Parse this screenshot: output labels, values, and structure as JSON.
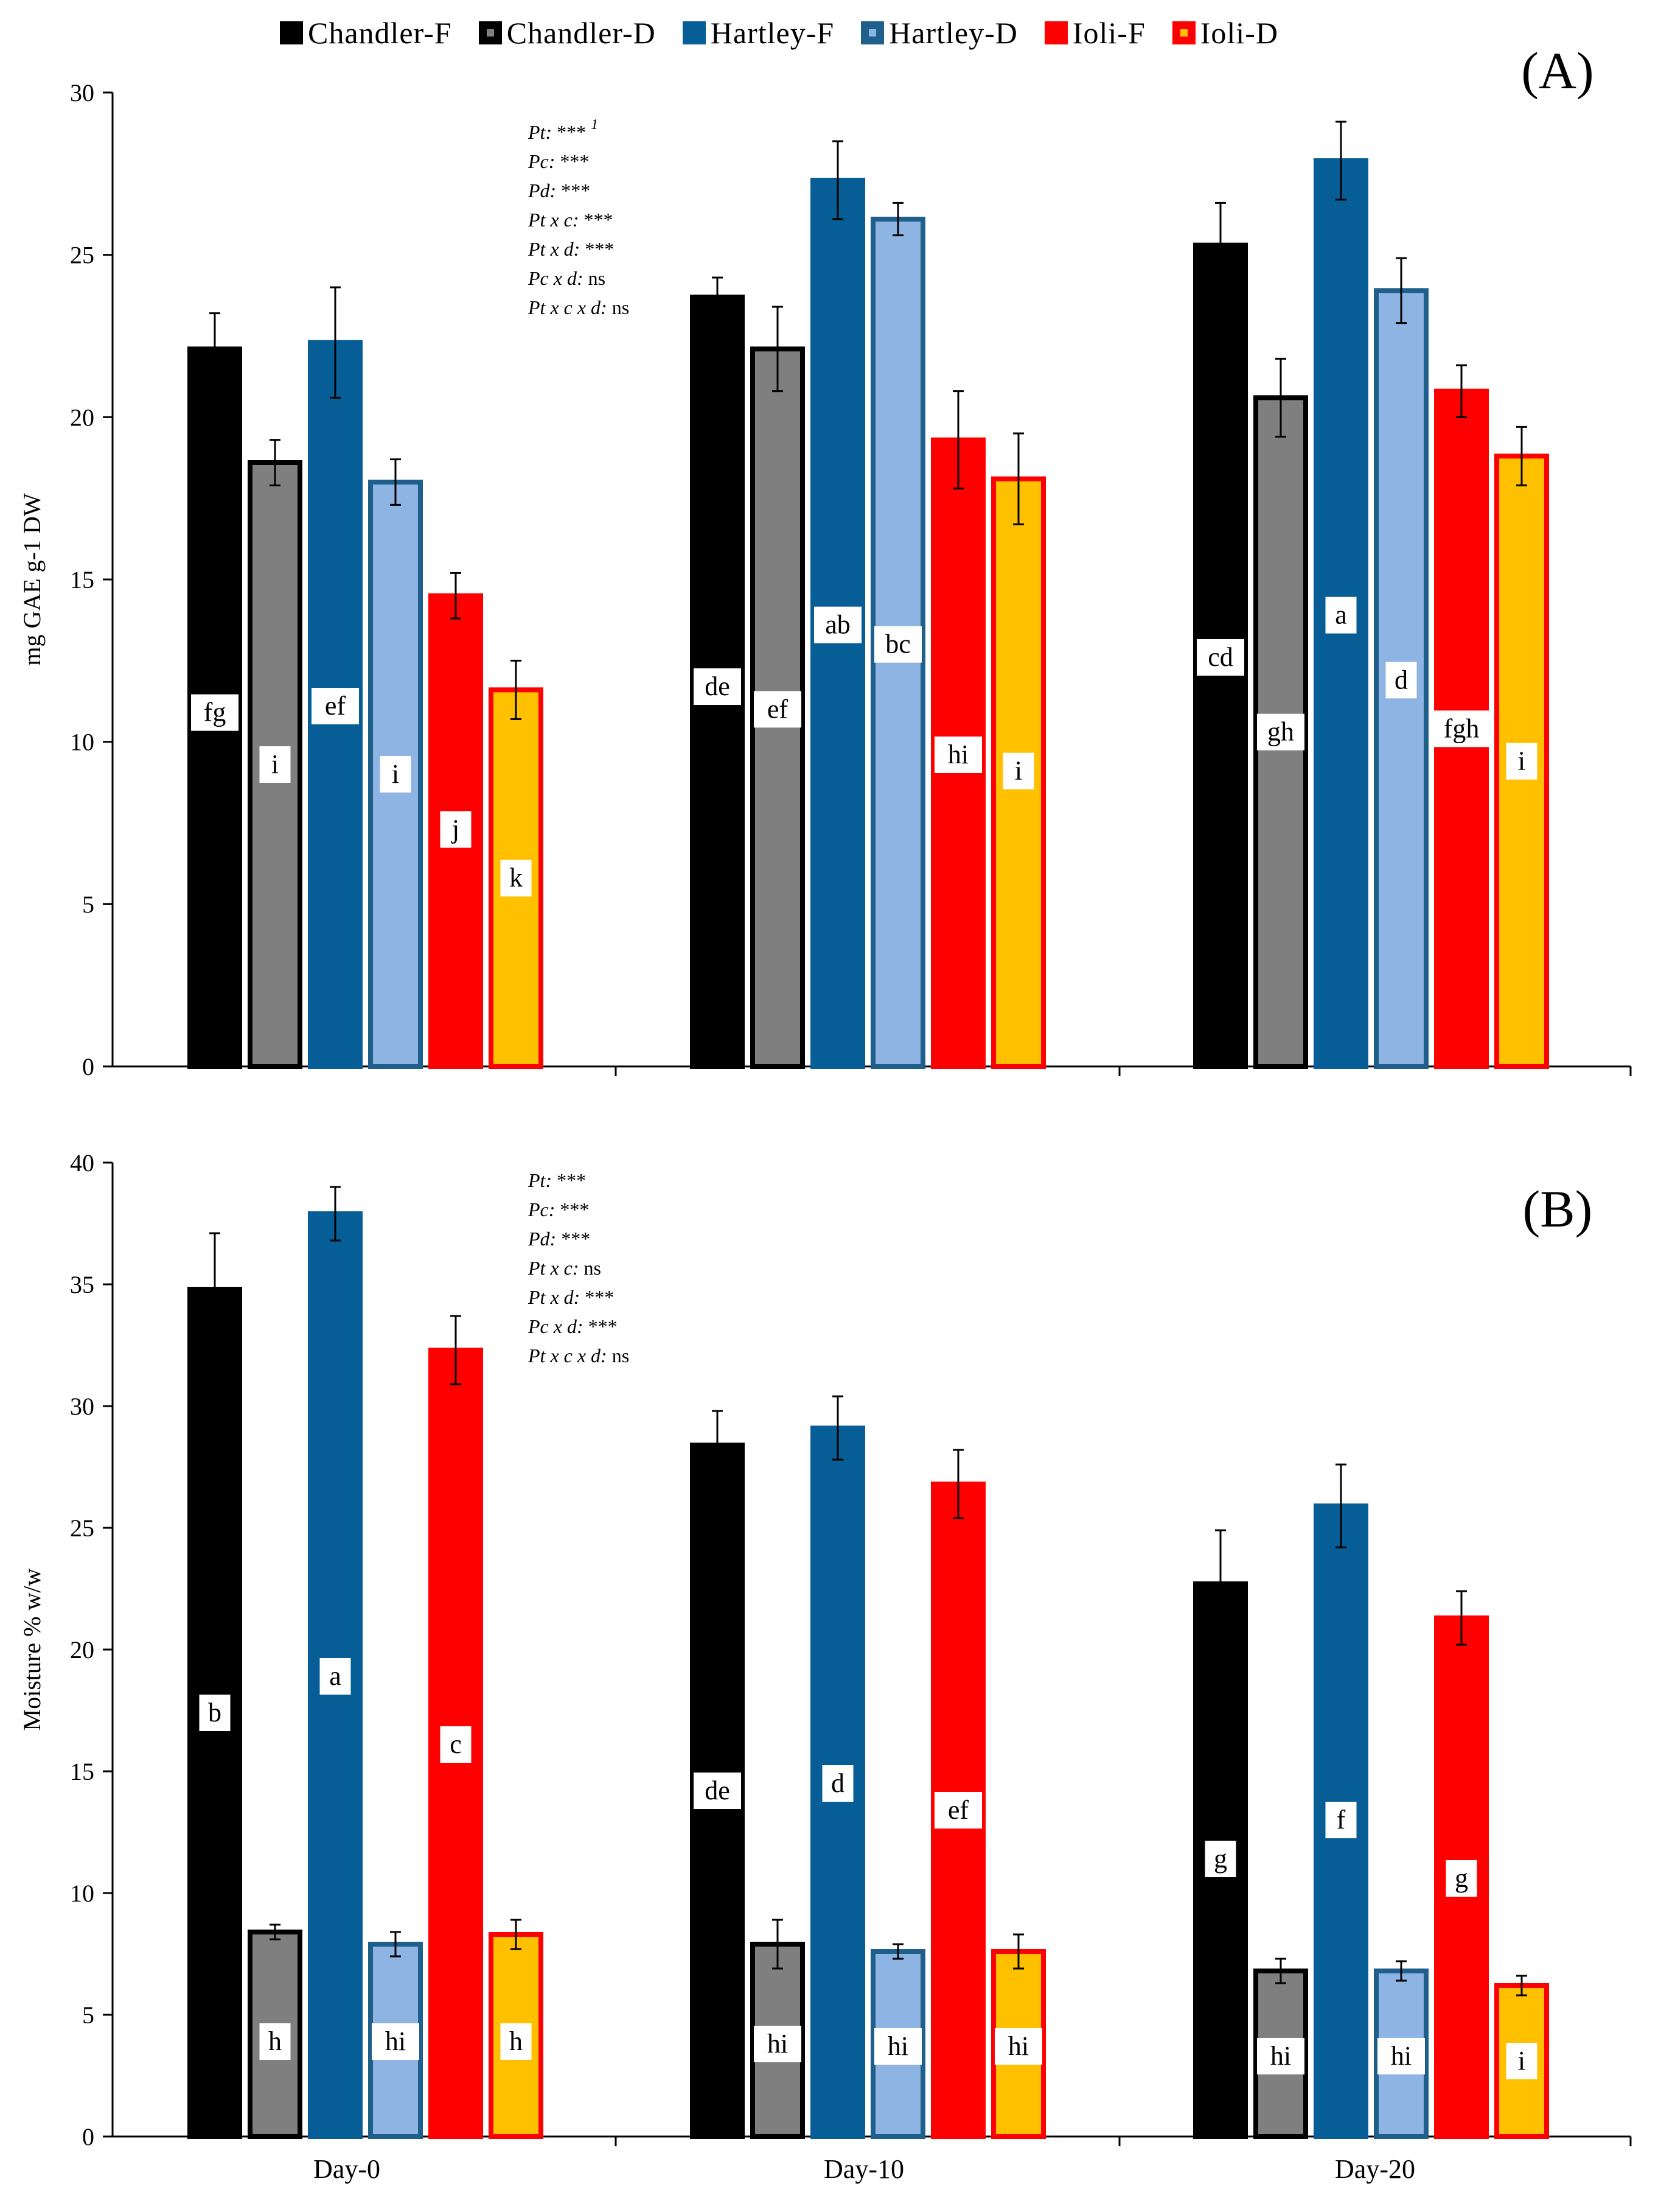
{
  "legend": [
    {
      "name": "Chandler-F",
      "fill": "#000000",
      "stroke": "#000000"
    },
    {
      "name": "Chandler-D",
      "fill": "#7f7f7f",
      "stroke": "#000000"
    },
    {
      "name": "Hartley-F",
      "fill": "#075e96",
      "stroke": "#1f5f8b"
    },
    {
      "name": "Hartley-D",
      "fill": "#8eb4e3",
      "stroke": "#1f5f8b"
    },
    {
      "name": "Ioli-F",
      "fill": "#ff0000",
      "stroke": "#ff0000"
    },
    {
      "name": "Ioli-D",
      "fill": "#ffc000",
      "stroke": "#ff0000"
    }
  ],
  "chart_data": [
    {
      "panel_label": "(A)",
      "type": "bar",
      "ylabel": "mg GAE g-1 DW",
      "ylim": [
        0,
        30
      ],
      "yticks": [
        0,
        5,
        10,
        15,
        20,
        25,
        30
      ],
      "categories": [
        "Day-0",
        "Day-10",
        "Day-20"
      ],
      "show_xticklabels": false,
      "series": [
        {
          "name": "Chandler-F",
          "values": [
            22.1,
            23.7,
            25.3
          ],
          "errors": [
            1.1,
            0.6,
            1.3
          ],
          "letters": [
            "fg",
            "de",
            "cd"
          ],
          "letter_y": [
            10.9,
            11.7,
            12.6
          ]
        },
        {
          "name": "Chandler-D",
          "values": [
            18.6,
            22.1,
            20.6
          ],
          "errors": [
            0.7,
            1.3,
            1.2
          ],
          "letters": [
            "i",
            "ef",
            "gh"
          ],
          "letter_y": [
            9.3,
            11.0,
            10.3
          ]
        },
        {
          "name": "Hartley-F",
          "values": [
            22.3,
            27.3,
            27.9
          ],
          "errors": [
            1.7,
            1.2,
            1.2
          ],
          "letters": [
            "ef",
            "ab",
            "a"
          ],
          "letter_y": [
            11.1,
            13.6,
            13.9
          ]
        },
        {
          "name": "Hartley-D",
          "values": [
            18.0,
            26.1,
            23.9
          ],
          "errors": [
            0.7,
            0.5,
            1.0
          ],
          "letters": [
            "i",
            "bc",
            "d"
          ],
          "letter_y": [
            9.0,
            13.0,
            11.9
          ]
        },
        {
          "name": "Ioli-F",
          "values": [
            14.5,
            19.3,
            20.8
          ],
          "errors": [
            0.7,
            1.5,
            0.8
          ],
          "letters": [
            "j",
            "hi",
            "fgh"
          ],
          "letter_y": [
            7.3,
            9.6,
            10.4
          ]
        },
        {
          "name": "Ioli-D",
          "values": [
            11.6,
            18.1,
            18.8
          ],
          "errors": [
            0.9,
            1.4,
            0.9
          ],
          "letters": [
            "k",
            "i",
            "i"
          ],
          "letter_y": [
            5.8,
            9.1,
            9.4
          ]
        }
      ],
      "stats": [
        {
          "term": "Pt:",
          "value": "***",
          "sup": "1"
        },
        {
          "term": "Pc:",
          "value": "***",
          "sup": ""
        },
        {
          "term": "Pd:",
          "value": "***",
          "sup": ""
        },
        {
          "term": "Pt x c:",
          "value": "***",
          "sup": ""
        },
        {
          "term": "Pt x d:",
          "value": "***",
          "sup": ""
        },
        {
          "term": "Pc x d:",
          "value": "ns",
          "sup": ""
        },
        {
          "term": "Pt x c x d:",
          "value": "ns",
          "sup": ""
        }
      ]
    },
    {
      "panel_label": "(B)",
      "type": "bar",
      "ylabel": "Moisture % w/w",
      "ylim": [
        0,
        40
      ],
      "yticks": [
        0,
        5,
        10,
        15,
        20,
        25,
        30,
        35,
        40
      ],
      "categories": [
        "Day-0",
        "Day-10",
        "Day-20"
      ],
      "show_xticklabels": true,
      "series": [
        {
          "name": "Chandler-F",
          "values": [
            34.8,
            28.4,
            22.7
          ],
          "errors": [
            2.3,
            1.4,
            2.2
          ],
          "letters": [
            "b",
            "de",
            "g"
          ],
          "letter_y": [
            17.4,
            14.2,
            11.4
          ]
        },
        {
          "name": "Chandler-D",
          "values": [
            8.4,
            7.9,
            6.8
          ],
          "errors": [
            0.3,
            1.0,
            0.5
          ],
          "letters": [
            "h",
            "hi",
            "hi"
          ],
          "letter_y": [
            3.9,
            3.8,
            3.3
          ]
        },
        {
          "name": "Hartley-F",
          "values": [
            37.9,
            29.1,
            25.9
          ],
          "errors": [
            1.1,
            1.3,
            1.7
          ],
          "letters": [
            "a",
            "d",
            "f"
          ],
          "letter_y": [
            18.9,
            14.5,
            13.0
          ]
        },
        {
          "name": "Hartley-D",
          "values": [
            7.9,
            7.6,
            6.8
          ],
          "errors": [
            0.5,
            0.3,
            0.4
          ],
          "letters": [
            "hi",
            "hi",
            "hi"
          ],
          "letter_y": [
            3.9,
            3.7,
            3.3
          ]
        },
        {
          "name": "Ioli-F",
          "values": [
            32.3,
            26.8,
            21.3
          ],
          "errors": [
            1.4,
            1.4,
            1.1
          ],
          "letters": [
            "c",
            "ef",
            "g"
          ],
          "letter_y": [
            16.1,
            13.4,
            10.6
          ]
        },
        {
          "name": "Ioli-D",
          "values": [
            8.3,
            7.6,
            6.2
          ],
          "errors": [
            0.6,
            0.7,
            0.4
          ],
          "letters": [
            "h",
            "hi",
            "i"
          ],
          "letter_y": [
            3.9,
            3.7,
            3.1
          ]
        }
      ],
      "stats": [
        {
          "term": "Pt:",
          "value": "***",
          "sup": ""
        },
        {
          "term": "Pc:",
          "value": "***",
          "sup": ""
        },
        {
          "term": "Pd:",
          "value": "***",
          "sup": ""
        },
        {
          "term": "Pt x c:",
          "value": "ns",
          "sup": ""
        },
        {
          "term": "Pt x d:",
          "value": "***",
          "sup": ""
        },
        {
          "term": "Pc x d:",
          "value": "***",
          "sup": ""
        },
        {
          "term": "Pt x c x d:",
          "value": "ns",
          "sup": ""
        }
      ]
    }
  ]
}
